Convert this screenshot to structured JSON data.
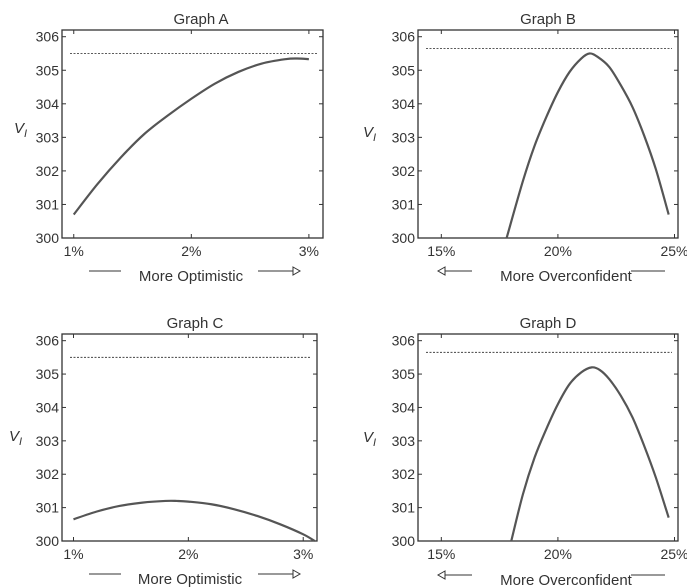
{
  "colors": {
    "curve": "#555555",
    "reference": "#444444",
    "frame": "#333333",
    "text": "#333333",
    "background": "#ffffff"
  },
  "chart_data": [
    {
      "type": "line",
      "title": "Graph A",
      "ylabel_main": "V",
      "ylabel_sub": "I",
      "xlabel": "More Optimistic",
      "xlabel_arrow": "right",
      "xlim": [
        0.009,
        0.0312
      ],
      "ylim": [
        300,
        306.2
      ],
      "x_ticks": [
        0.01,
        0.02,
        0.03
      ],
      "x_tick_labels": [
        "1%",
        "2%",
        "3%"
      ],
      "y_ticks": [
        300,
        301,
        302,
        303,
        304,
        305,
        306
      ],
      "y_tick_labels": [
        "300",
        "301",
        "302",
        "303",
        "304",
        "305",
        "306"
      ],
      "reference_line": {
        "y": 305.5,
        "style": "dashed"
      },
      "series": [
        {
          "x": [
            0.01,
            0.012,
            0.014,
            0.016,
            0.018,
            0.02,
            0.022,
            0.024,
            0.026,
            0.028,
            0.029,
            0.03
          ],
          "y": [
            300.7,
            301.6,
            302.4,
            303.1,
            303.65,
            304.15,
            304.6,
            304.95,
            305.2,
            305.33,
            305.35,
            305.33
          ]
        }
      ],
      "grid": false
    },
    {
      "type": "line",
      "title": "Graph B",
      "ylabel_main": "V",
      "ylabel_sub": "I",
      "xlabel": "More Overconfident",
      "xlabel_arrow": "left",
      "xlim": [
        0.14,
        0.2515
      ],
      "ylim": [
        300,
        306.2
      ],
      "x_ticks": [
        0.15,
        0.2,
        0.25
      ],
      "x_tick_labels": [
        "15%",
        "20%",
        "25%"
      ],
      "y_ticks": [
        300,
        301,
        302,
        303,
        304,
        305,
        306
      ],
      "y_tick_labels": [
        "300",
        "301",
        "302",
        "303",
        "304",
        "305",
        "306"
      ],
      "reference_line": {
        "y": 305.65,
        "style": "dashed"
      },
      "series": [
        {
          "x": [
            0.178,
            0.185,
            0.19,
            0.195,
            0.2,
            0.205,
            0.21,
            0.2135,
            0.217,
            0.222,
            0.227,
            0.232,
            0.237,
            0.242,
            0.2475
          ],
          "y": [
            300.0,
            301.7,
            302.75,
            303.6,
            304.35,
            304.95,
            305.35,
            305.5,
            305.4,
            305.1,
            304.55,
            303.9,
            303.05,
            302.05,
            300.7
          ]
        }
      ],
      "grid": false
    },
    {
      "type": "line",
      "title": "Graph C",
      "ylabel_main": "V",
      "ylabel_sub": "I",
      "xlabel": "More Optimistic",
      "xlabel_arrow": "right",
      "xlim": [
        0.009,
        0.0312
      ],
      "ylim": [
        300,
        306.2
      ],
      "x_ticks": [
        0.01,
        0.02,
        0.03
      ],
      "x_tick_labels": [
        "1%",
        "2%",
        "3%"
      ],
      "y_ticks": [
        300,
        301,
        302,
        303,
        304,
        305,
        306
      ],
      "y_tick_labels": [
        "300",
        "301",
        "302",
        "303",
        "304",
        "305",
        "306"
      ],
      "reference_line": {
        "y": 305.5,
        "style": "dashed"
      },
      "series": [
        {
          "x": [
            0.01,
            0.012,
            0.014,
            0.016,
            0.018,
            0.019,
            0.02,
            0.022,
            0.024,
            0.026,
            0.028,
            0.03,
            0.031
          ],
          "y": [
            300.65,
            300.88,
            301.05,
            301.15,
            301.2,
            301.2,
            301.18,
            301.1,
            300.95,
            300.75,
            300.5,
            300.2,
            300.0
          ]
        }
      ],
      "grid": false
    },
    {
      "type": "line",
      "title": "Graph D",
      "ylabel_main": "V",
      "ylabel_sub": "I",
      "xlabel": "More Overconfident",
      "xlabel_arrow": "left",
      "xlim": [
        0.14,
        0.2515
      ],
      "ylim": [
        300,
        306.2
      ],
      "x_ticks": [
        0.15,
        0.2,
        0.25
      ],
      "x_tick_labels": [
        "15%",
        "20%",
        "25%"
      ],
      "y_ticks": [
        300,
        301,
        302,
        303,
        304,
        305,
        306
      ],
      "y_tick_labels": [
        "300",
        "301",
        "302",
        "303",
        "304",
        "305",
        "306"
      ],
      "reference_line": {
        "y": 305.65,
        "style": "dashed"
      },
      "series": [
        {
          "x": [
            0.18,
            0.185,
            0.19,
            0.195,
            0.2,
            0.205,
            0.21,
            0.2145,
            0.218,
            0.222,
            0.227,
            0.232,
            0.237,
            0.242,
            0.2475
          ],
          "y": [
            300.0,
            301.4,
            302.5,
            303.35,
            304.1,
            304.7,
            305.05,
            305.2,
            305.12,
            304.85,
            304.35,
            303.7,
            302.85,
            301.9,
            300.7
          ]
        }
      ],
      "grid": false
    }
  ]
}
